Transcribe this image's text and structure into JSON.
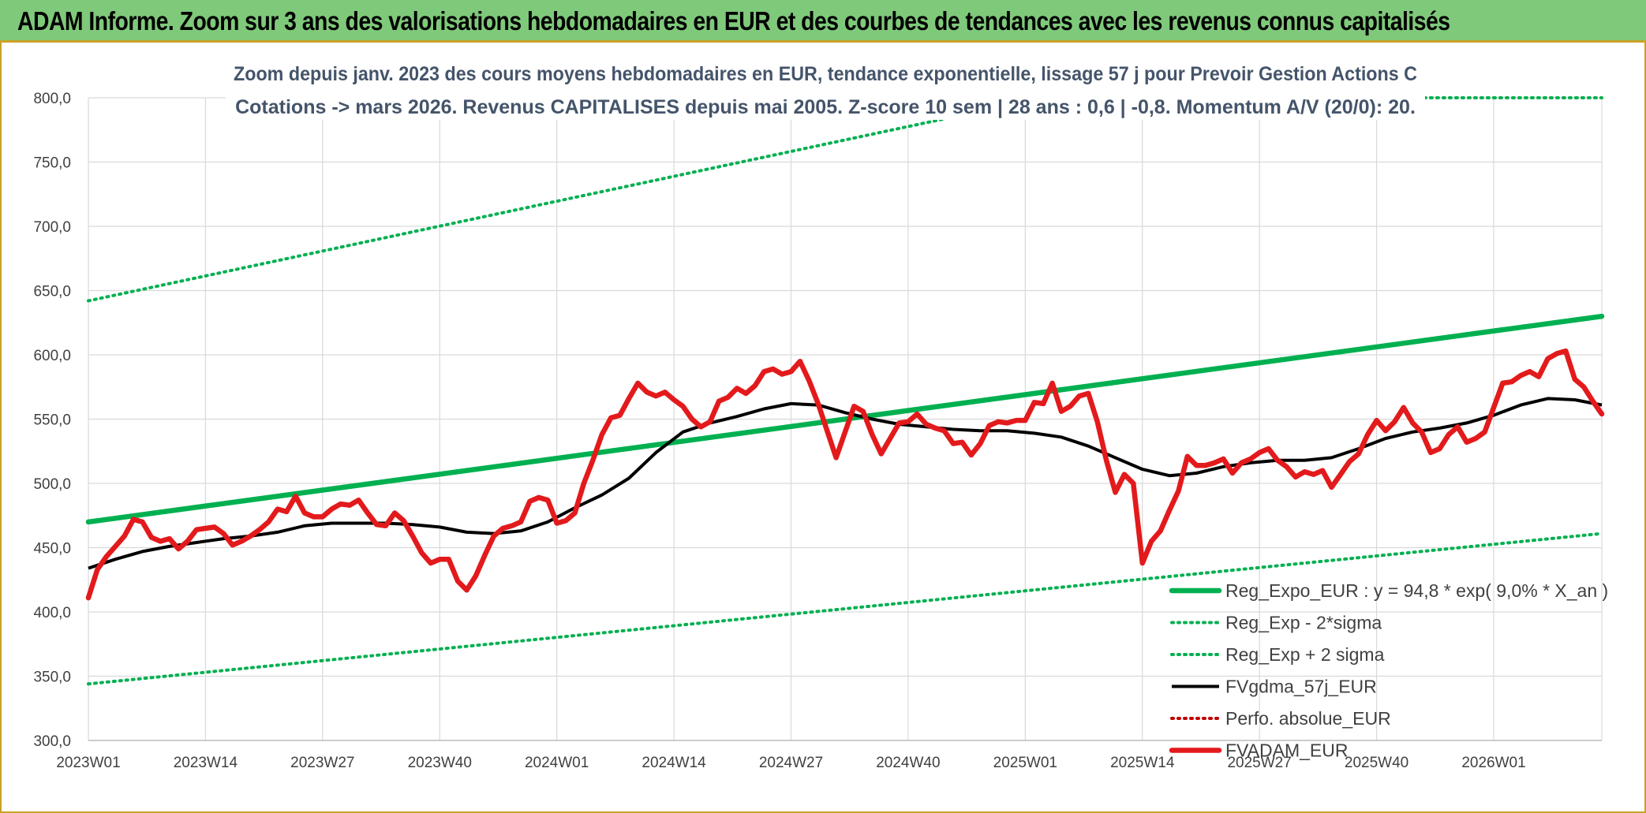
{
  "banner": {
    "title": "ADAM Informe. Zoom sur 3 ans des valorisations hebdomadaires en EUR et des courbes de tendances avec les revenus connus capitalisés"
  },
  "chart_data": {
    "type": "line",
    "title_lines": [
      "Zoom depuis janv. 2023 des cours moyens hebdomadaires en EUR, tendance exponentielle, lissage 57 j pour Prevoir Gestion Actions C",
      "Cotations -> mars 2026. Revenus CAPITALISES depuis mai 2005. Z-score 10 sem | 28 ans : 0,6 | -0,8. Momentum A/V (20/0): 20."
    ],
    "xlabel": "",
    "ylabel": "",
    "ylim": [
      300,
      800
    ],
    "y_ticks": [
      "300,0",
      "350,0",
      "400,0",
      "450,0",
      "500,0",
      "550,0",
      "600,0",
      "650,0",
      "700,0",
      "750,0",
      "800,0"
    ],
    "x_ticks": [
      "2023W01",
      "2023W14",
      "2023W27",
      "2023W40",
      "2024W01",
      "2024W14",
      "2024W27",
      "2024W40",
      "2025W01",
      "2025W14",
      "2025W27",
      "2025W40",
      "2026W01"
    ],
    "x_tick_weeks": [
      0,
      13,
      26,
      39,
      52,
      65,
      78,
      91,
      104,
      117,
      130,
      143,
      156
    ],
    "x_range_weeks": [
      0,
      168
    ],
    "grid": {
      "vertical": true,
      "horizontal": true
    },
    "legend_position": "bottom-right",
    "series": [
      {
        "name": "Reg_Expo_EUR : y = 94,8 * exp( 9,0% * X_an )",
        "style": "thick-solid",
        "color": "#00b050",
        "values": [
          [
            0,
            470
          ],
          [
            168,
            630
          ]
        ]
      },
      {
        "name": "Reg_Exp - 2*sigma",
        "style": "dotted",
        "color": "#00b050",
        "values": [
          [
            0,
            344
          ],
          [
            168,
            461
          ]
        ]
      },
      {
        "name": "Reg_Exp + 2 sigma",
        "style": "dotted",
        "color": "#00b050",
        "values": [
          [
            0,
            642
          ],
          [
            106,
            800
          ],
          [
            168,
            800
          ]
        ]
      },
      {
        "name": "FVgdma_57j_EUR",
        "style": "solid",
        "color": "#000000",
        "values": [
          [
            0,
            434
          ],
          [
            3,
            441
          ],
          [
            6,
            447
          ],
          [
            9,
            451
          ],
          [
            12,
            454
          ],
          [
            15,
            457
          ],
          [
            18,
            459
          ],
          [
            21,
            462
          ],
          [
            24,
            467
          ],
          [
            27,
            469
          ],
          [
            30,
            469
          ],
          [
            33,
            469
          ],
          [
            36,
            468
          ],
          [
            39,
            466
          ],
          [
            42,
            462
          ],
          [
            45,
            461
          ],
          [
            48,
            463
          ],
          [
            51,
            470
          ],
          [
            54,
            481
          ],
          [
            57,
            491
          ],
          [
            60,
            504
          ],
          [
            63,
            524
          ],
          [
            66,
            540
          ],
          [
            69,
            547
          ],
          [
            72,
            552
          ],
          [
            75,
            558
          ],
          [
            78,
            562
          ],
          [
            81,
            561
          ],
          [
            84,
            555
          ],
          [
            87,
            550
          ],
          [
            90,
            546
          ],
          [
            93,
            544
          ],
          [
            96,
            542
          ],
          [
            99,
            541
          ],
          [
            102,
            541
          ],
          [
            105,
            539
          ],
          [
            108,
            536
          ],
          [
            111,
            529
          ],
          [
            114,
            520
          ],
          [
            117,
            511
          ],
          [
            120,
            506
          ],
          [
            123,
            508
          ],
          [
            126,
            513
          ],
          [
            129,
            516
          ],
          [
            132,
            518
          ],
          [
            135,
            518
          ],
          [
            138,
            520
          ],
          [
            141,
            527
          ],
          [
            144,
            535
          ],
          [
            147,
            540
          ],
          [
            150,
            543
          ],
          [
            153,
            547
          ],
          [
            156,
            553
          ],
          [
            159,
            561
          ],
          [
            162,
            566
          ],
          [
            165,
            565
          ],
          [
            168,
            561
          ]
        ]
      },
      {
        "name": "Perfo. absolue_EUR",
        "style": "dotted",
        "color": "#c00000",
        "values": []
      },
      {
        "name": "FVADAM_EUR",
        "style": "thick-solid",
        "color": "#e31a1c",
        "values": [
          [
            0,
            411
          ],
          [
            1,
            433
          ],
          [
            2,
            443
          ],
          [
            3,
            451
          ],
          [
            4,
            459
          ],
          [
            5,
            472
          ],
          [
            6,
            470
          ],
          [
            7,
            458
          ],
          [
            8,
            455
          ],
          [
            9,
            457
          ],
          [
            10,
            449
          ],
          [
            11,
            455
          ],
          [
            12,
            464
          ],
          [
            13,
            465
          ],
          [
            14,
            466
          ],
          [
            15,
            461
          ],
          [
            16,
            452
          ],
          [
            17,
            455
          ],
          [
            18,
            459
          ],
          [
            19,
            464
          ],
          [
            20,
            470
          ],
          [
            21,
            480
          ],
          [
            22,
            478
          ],
          [
            23,
            490
          ],
          [
            24,
            477
          ],
          [
            25,
            474
          ],
          [
            26,
            474
          ],
          [
            27,
            480
          ],
          [
            28,
            484
          ],
          [
            29,
            483
          ],
          [
            30,
            487
          ],
          [
            31,
            477
          ],
          [
            32,
            468
          ],
          [
            33,
            467
          ],
          [
            34,
            477
          ],
          [
            35,
            471
          ],
          [
            36,
            459
          ],
          [
            37,
            446
          ],
          [
            38,
            438
          ],
          [
            39,
            441
          ],
          [
            40,
            441
          ],
          [
            41,
            424
          ],
          [
            42,
            417
          ],
          [
            43,
            428
          ],
          [
            44,
            444
          ],
          [
            45,
            459
          ],
          [
            46,
            465
          ],
          [
            47,
            467
          ],
          [
            48,
            470
          ],
          [
            49,
            486
          ],
          [
            50,
            489
          ],
          [
            51,
            487
          ],
          [
            52,
            469
          ],
          [
            53,
            471
          ],
          [
            54,
            477
          ],
          [
            55,
            500
          ],
          [
            56,
            518
          ],
          [
            57,
            538
          ],
          [
            58,
            551
          ],
          [
            59,
            553
          ],
          [
            60,
            566
          ],
          [
            61,
            578
          ],
          [
            62,
            571
          ],
          [
            63,
            568
          ],
          [
            64,
            571
          ],
          [
            65,
            565
          ],
          [
            66,
            560
          ],
          [
            67,
            550
          ],
          [
            68,
            544
          ],
          [
            69,
            548
          ],
          [
            70,
            564
          ],
          [
            71,
            567
          ],
          [
            72,
            574
          ],
          [
            73,
            570
          ],
          [
            74,
            576
          ],
          [
            75,
            587
          ],
          [
            76,
            589
          ],
          [
            77,
            585
          ],
          [
            78,
            587
          ],
          [
            79,
            595
          ],
          [
            80,
            580
          ],
          [
            81,
            562
          ],
          [
            82,
            541
          ],
          [
            83,
            520
          ],
          [
            84,
            540
          ],
          [
            85,
            560
          ],
          [
            86,
            556
          ],
          [
            87,
            538
          ],
          [
            88,
            523
          ],
          [
            89,
            535
          ],
          [
            90,
            547
          ],
          [
            91,
            548
          ],
          [
            92,
            554
          ],
          [
            93,
            546
          ],
          [
            94,
            543
          ],
          [
            95,
            541
          ],
          [
            96,
            531
          ],
          [
            97,
            532
          ],
          [
            98,
            522
          ],
          [
            99,
            531
          ],
          [
            100,
            545
          ],
          [
            101,
            548
          ],
          [
            102,
            547
          ],
          [
            103,
            549
          ],
          [
            104,
            549
          ],
          [
            105,
            563
          ],
          [
            106,
            562
          ],
          [
            107,
            578
          ],
          [
            108,
            556
          ],
          [
            109,
            560
          ],
          [
            110,
            568
          ],
          [
            111,
            570
          ],
          [
            112,
            548
          ],
          [
            113,
            518
          ],
          [
            114,
            493
          ],
          [
            115,
            507
          ],
          [
            116,
            500
          ],
          [
            117,
            438
          ],
          [
            118,
            455
          ],
          [
            119,
            463
          ],
          [
            120,
            479
          ],
          [
            121,
            494
          ],
          [
            122,
            521
          ],
          [
            123,
            514
          ],
          [
            124,
            514
          ],
          [
            125,
            516
          ],
          [
            126,
            519
          ],
          [
            127,
            508
          ],
          [
            128,
            516
          ],
          [
            129,
            519
          ],
          [
            130,
            524
          ],
          [
            131,
            527
          ],
          [
            132,
            518
          ],
          [
            133,
            513
          ],
          [
            134,
            505
          ],
          [
            135,
            509
          ],
          [
            136,
            507
          ],
          [
            137,
            510
          ],
          [
            138,
            497
          ],
          [
            139,
            507
          ],
          [
            140,
            517
          ],
          [
            141,
            523
          ],
          [
            142,
            538
          ],
          [
            143,
            549
          ],
          [
            144,
            541
          ],
          [
            145,
            548
          ],
          [
            146,
            559
          ],
          [
            147,
            547
          ],
          [
            148,
            540
          ],
          [
            149,
            524
          ],
          [
            150,
            527
          ],
          [
            151,
            538
          ],
          [
            152,
            544
          ],
          [
            153,
            532
          ],
          [
            154,
            535
          ],
          [
            155,
            540
          ],
          [
            156,
            559
          ],
          [
            157,
            578
          ],
          [
            158,
            579
          ],
          [
            159,
            584
          ],
          [
            160,
            587
          ],
          [
            161,
            583
          ],
          [
            162,
            597
          ],
          [
            163,
            601
          ],
          [
            164,
            603
          ],
          [
            165,
            581
          ],
          [
            166,
            575
          ],
          [
            167,
            564
          ],
          [
            168,
            554
          ]
        ]
      }
    ]
  }
}
